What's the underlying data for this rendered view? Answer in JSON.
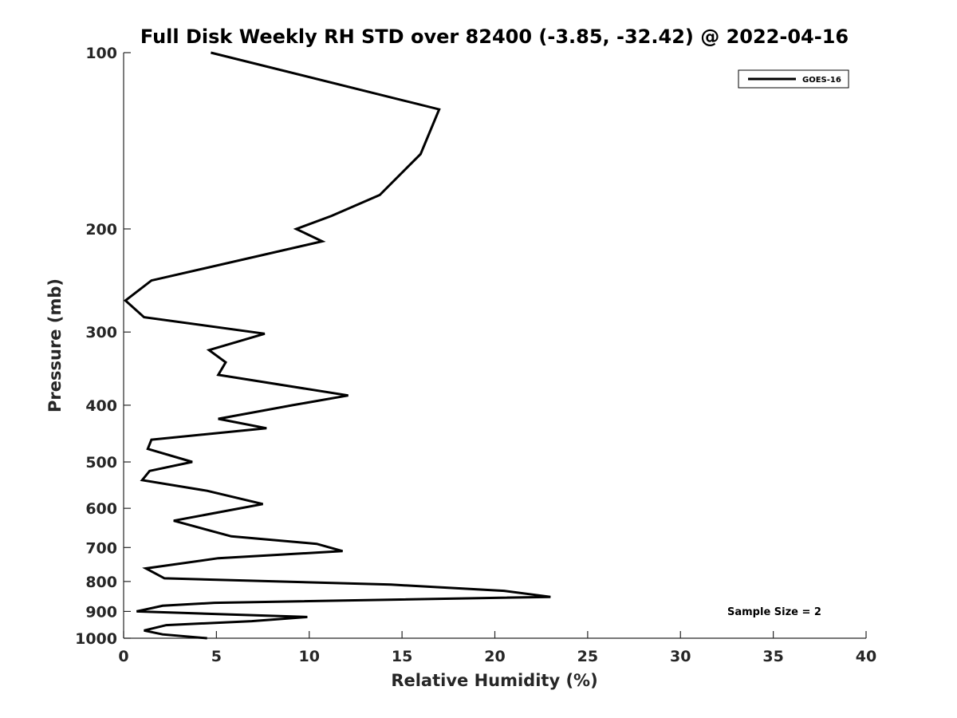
{
  "chart_data": {
    "type": "line",
    "title": "Full Disk Weekly RH STD over 82400 (-3.85, -32.42) @ 2022-04-16",
    "xlabel": "Relative Humidity (%)",
    "ylabel": "Pressure (mb)",
    "xlim": [
      0,
      40
    ],
    "ylim": [
      100,
      1000
    ],
    "y_scale": "log",
    "y_reversed": true,
    "x_ticks": [
      0,
      5,
      10,
      15,
      20,
      25,
      30,
      35,
      40
    ],
    "x_tick_labels": [
      "0",
      "5",
      "10",
      "15",
      "20",
      "25",
      "30",
      "35",
      "40"
    ],
    "y_ticks": [
      100,
      200,
      300,
      400,
      500,
      600,
      700,
      800,
      900,
      1000
    ],
    "y_tick_labels": [
      "100",
      "200",
      "300",
      "400",
      "500",
      "600",
      "700",
      "800",
      "900",
      "1000"
    ],
    "grid": false,
    "legend_position": "top-right",
    "annotation": "Sample Size = 2",
    "series": [
      {
        "name": "GOES-16",
        "color": "#000000",
        "x": [
          4.7,
          17.0,
          16.0,
          13.8,
          11.2,
          9.3,
          10.7,
          1.5,
          0.1,
          1.1,
          7.6,
          4.6,
          5.5,
          5.1,
          12.1,
          9.1,
          5.1,
          7.7,
          1.5,
          1.3,
          3.7,
          1.4,
          1.0,
          4.5,
          7.5,
          2.7,
          5.8,
          10.4,
          11.8,
          5.1,
          1.2,
          2.2,
          14.4,
          20.5,
          23.0,
          4.9,
          2.1,
          0.7,
          9.9,
          6.9,
          2.3,
          1.1,
          2.1,
          4.5
        ],
        "y": [
          100,
          125,
          149,
          175,
          190,
          200,
          210,
          245,
          265,
          283,
          302,
          322,
          338,
          355,
          385,
          400,
          422,
          438,
          458,
          475,
          500,
          518,
          537,
          560,
          590,
          630,
          670,
          690,
          710,
          730,
          760,
          790,
          810,
          830,
          850,
          870,
          880,
          900,
          920,
          935,
          950,
          970,
          985,
          1000
        ]
      }
    ]
  }
}
